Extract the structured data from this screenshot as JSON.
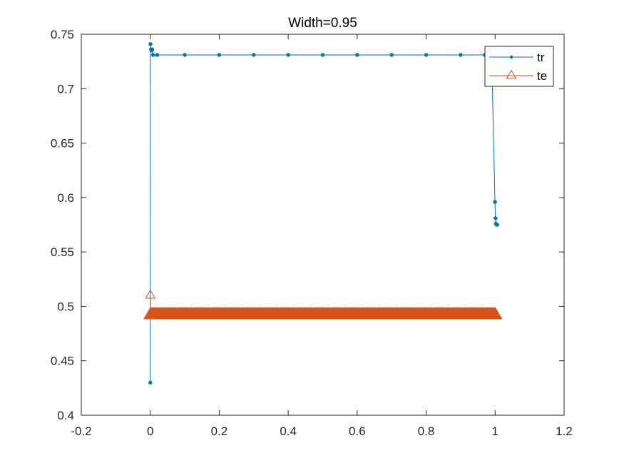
{
  "chart_data": {
    "type": "line",
    "title": "Width=0.95",
    "xlabel": "",
    "ylabel": "",
    "xlim": [
      -0.2,
      1.2
    ],
    "ylim": [
      0.4,
      0.75
    ],
    "xticks": [
      -0.2,
      0,
      0.2,
      0.4,
      0.6,
      0.8,
      1,
      1.2
    ],
    "xtick_labels": [
      "-0.2",
      "0",
      "0.2",
      "0.4",
      "0.6",
      "0.8",
      "1",
      "1.2"
    ],
    "yticks": [
      0.4,
      0.45,
      0.5,
      0.55,
      0.6,
      0.65,
      0.7,
      0.75
    ],
    "ytick_labels": [
      "0.4",
      "0.45",
      "0.5",
      "0.55",
      "0.6",
      "0.65",
      "0.7",
      "0.75"
    ],
    "grid": false,
    "legend_position": "top-right",
    "series": [
      {
        "name": "tr",
        "color": "#0072BD",
        "marker": "dot",
        "points": [
          [
            0.0,
            0.43
          ],
          [
            0.0005,
            0.741
          ],
          [
            0.002,
            0.736
          ],
          [
            0.004,
            0.735
          ],
          [
            0.006,
            0.736
          ],
          [
            0.008,
            0.731
          ],
          [
            0.02,
            0.731
          ],
          [
            0.1,
            0.731
          ],
          [
            0.2,
            0.731
          ],
          [
            0.3,
            0.731
          ],
          [
            0.4,
            0.731
          ],
          [
            0.5,
            0.731
          ],
          [
            0.6,
            0.731
          ],
          [
            0.7,
            0.731
          ],
          [
            0.8,
            0.731
          ],
          [
            0.9,
            0.731
          ],
          [
            0.97,
            0.731
          ],
          [
            0.99,
            0.731
          ],
          [
            0.9995,
            0.596
          ],
          [
            1.001,
            0.581
          ],
          [
            1.002,
            0.576
          ],
          [
            1.004,
            0.575
          ],
          [
            1.006,
            0.575
          ]
        ]
      },
      {
        "name": "te",
        "color": "#D95319",
        "marker": "triangle",
        "points": [
          [
            0.0,
            0.51
          ],
          [
            0.0005,
            0.492
          ],
          [
            0.1,
            0.492
          ],
          [
            0.2,
            0.492
          ],
          [
            0.3,
            0.492
          ],
          [
            0.4,
            0.492
          ],
          [
            0.5,
            0.492
          ],
          [
            0.6,
            0.492
          ],
          [
            0.7,
            0.492
          ],
          [
            0.8,
            0.492
          ],
          [
            0.9,
            0.492
          ],
          [
            1.0,
            0.492
          ]
        ]
      }
    ]
  }
}
